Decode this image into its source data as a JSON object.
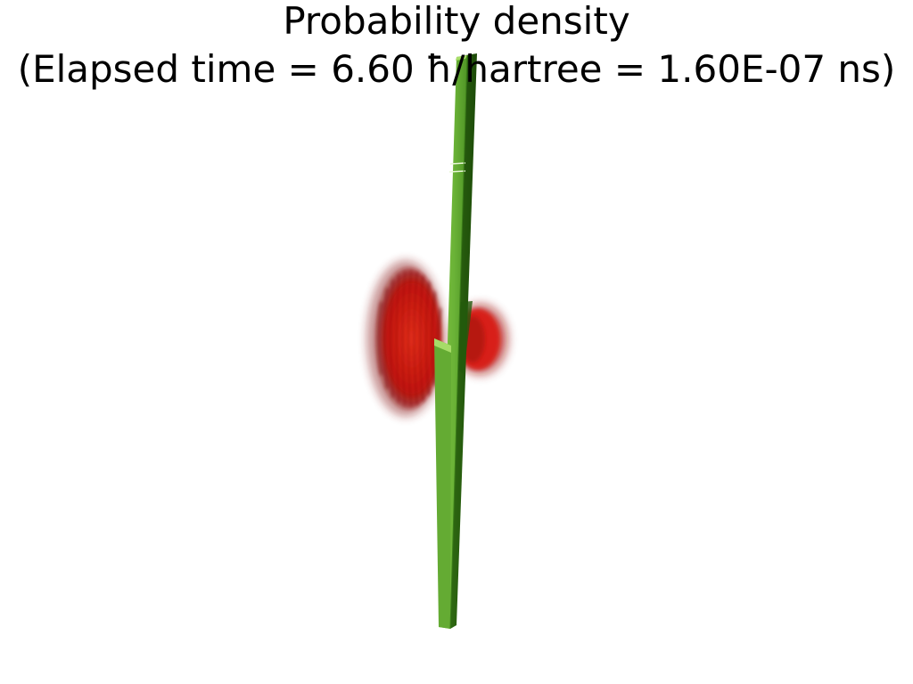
{
  "title": {
    "line1": "Probability density",
    "line2": "(Elapsed time = 6.60 ħ/hartree = 1.60E-07 ns)"
  },
  "colors": {
    "background": "#ffffff",
    "barrier": "#6fb43a",
    "barrier_dark": "#2f6a12",
    "wavepacket": "#e0201a",
    "title_text": "#000000"
  }
}
